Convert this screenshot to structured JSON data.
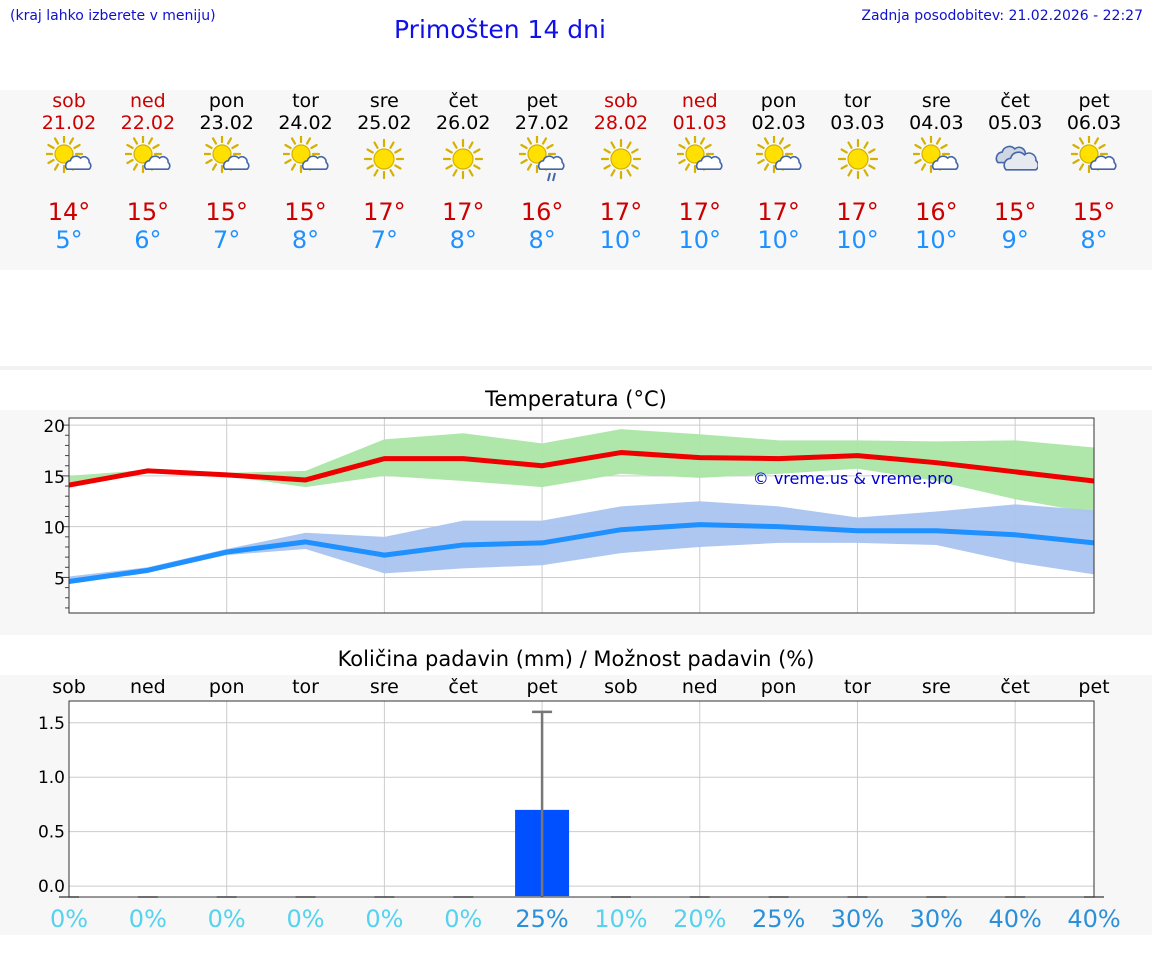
{
  "header": {
    "hint": "(kraj lahko izberete v meniju)",
    "title": "Primošten 14 dni",
    "updated": "Zadnja posodobitev: 21.02.2026 - 22:27"
  },
  "days": [
    {
      "name": "sob",
      "date": "21.02",
      "weekend": true,
      "icon": "sun-cloud-icon",
      "tmax": "14°",
      "tmin": "5°"
    },
    {
      "name": "ned",
      "date": "22.02",
      "weekend": true,
      "icon": "sun-cloud-icon",
      "tmax": "15°",
      "tmin": "6°"
    },
    {
      "name": "pon",
      "date": "23.02",
      "weekend": false,
      "icon": "sun-cloud-icon",
      "tmax": "15°",
      "tmin": "7°"
    },
    {
      "name": "tor",
      "date": "24.02",
      "weekend": false,
      "icon": "sun-cloud-icon",
      "tmax": "15°",
      "tmin": "8°"
    },
    {
      "name": "sre",
      "date": "25.02",
      "weekend": false,
      "icon": "sun-icon",
      "tmax": "17°",
      "tmin": "7°"
    },
    {
      "name": "čet",
      "date": "26.02",
      "weekend": false,
      "icon": "sun-icon",
      "tmax": "17°",
      "tmin": "8°"
    },
    {
      "name": "pet",
      "date": "27.02",
      "weekend": false,
      "icon": "sun-cloud-rain-icon",
      "tmax": "16°",
      "tmin": "8°"
    },
    {
      "name": "sob",
      "date": "28.02",
      "weekend": true,
      "icon": "sun-icon",
      "tmax": "17°",
      "tmin": "10°"
    },
    {
      "name": "ned",
      "date": "01.03",
      "weekend": true,
      "icon": "sun-cloud-icon",
      "tmax": "17°",
      "tmin": "10°"
    },
    {
      "name": "pon",
      "date": "02.03",
      "weekend": false,
      "icon": "sun-cloud-icon",
      "tmax": "17°",
      "tmin": "10°"
    },
    {
      "name": "tor",
      "date": "03.03",
      "weekend": false,
      "icon": "sun-icon",
      "tmax": "17°",
      "tmin": "10°"
    },
    {
      "name": "sre",
      "date": "04.03",
      "weekend": false,
      "icon": "sun-cloud-icon",
      "tmax": "16°",
      "tmin": "10°"
    },
    {
      "name": "čet",
      "date": "05.03",
      "weekend": false,
      "icon": "cloud-icon",
      "tmax": "15°",
      "tmin": "9°"
    },
    {
      "name": "pet",
      "date": "06.03",
      "weekend": false,
      "icon": "sun-cloud-icon",
      "tmax": "15°",
      "tmin": "8°"
    }
  ],
  "colors": {
    "weekend": "#cc0000",
    "max_line": "#ee0000",
    "max_band": "#abe6a6",
    "min_line": "#1e90ff",
    "min_band": "#aac4f0",
    "precip_bar": "#0050ff",
    "pct_low": "#55d2ee",
    "pct_high": "#2b90d9",
    "watermark": "#0000cc"
  },
  "chart_data": [
    {
      "type": "line",
      "title": "Temperatura (°C)",
      "watermark": "© vreme.us & vreme.pro",
      "ylim": [
        1.5,
        20.7
      ],
      "yticks": [
        5,
        10,
        15,
        20
      ],
      "x": [
        0,
        1,
        2,
        3,
        4,
        5,
        6,
        7,
        8,
        9,
        10,
        11,
        12,
        13
      ],
      "series": [
        {
          "name": "max",
          "values": [
            14.1,
            15.5,
            15.1,
            14.6,
            16.7,
            16.7,
            16.0,
            17.3,
            16.8,
            16.7,
            17.0,
            16.3,
            15.4,
            14.5
          ],
          "band_low": [
            14.3,
            15.4,
            15.0,
            13.9,
            15.0,
            14.5,
            13.9,
            15.2,
            14.8,
            15.2,
            15.7,
            14.5,
            12.7,
            11.3
          ],
          "band_high": [
            15.0,
            15.6,
            15.3,
            15.5,
            18.6,
            19.2,
            18.2,
            19.6,
            19.1,
            18.5,
            18.5,
            18.4,
            18.5,
            17.8
          ]
        },
        {
          "name": "min",
          "values": [
            4.6,
            5.7,
            7.5,
            8.5,
            7.2,
            8.2,
            8.4,
            9.7,
            10.2,
            10.0,
            9.6,
            9.6,
            9.2,
            8.4
          ],
          "band_low": [
            4.4,
            5.5,
            7.2,
            7.8,
            5.4,
            5.9,
            6.2,
            7.4,
            8.0,
            8.4,
            8.4,
            8.2,
            6.5,
            5.3
          ],
          "band_high": [
            5.1,
            6.0,
            7.8,
            9.4,
            9.0,
            10.6,
            10.6,
            12.0,
            12.5,
            12.0,
            10.9,
            11.5,
            12.2,
            11.6
          ]
        }
      ]
    },
    {
      "type": "bar",
      "title": "Količina padavin (mm) / Možnost padavin (%)",
      "categories": [
        "sob",
        "ned",
        "pon",
        "tor",
        "sre",
        "čet",
        "pet",
        "sob",
        "ned",
        "pon",
        "tor",
        "sre",
        "čet",
        "pet"
      ],
      "ylim": [
        -0.1,
        1.7
      ],
      "yticks": [
        0.0,
        0.5,
        1.0,
        1.5
      ],
      "ytick_labels": [
        "0.0",
        "0.5",
        "1.0",
        "1.5"
      ],
      "values": [
        0,
        0,
        0,
        0,
        0,
        0,
        0.7,
        0,
        0,
        0,
        0,
        0,
        0,
        0
      ],
      "error_max": [
        0,
        0,
        0,
        0,
        0,
        0,
        1.6,
        0,
        0,
        0,
        0,
        0,
        0,
        0
      ],
      "probability": [
        "0%",
        "0%",
        "0%",
        "0%",
        "0%",
        "0%",
        "25%",
        "10%",
        "20%",
        "25%",
        "30%",
        "30%",
        "40%",
        "40%"
      ]
    }
  ]
}
